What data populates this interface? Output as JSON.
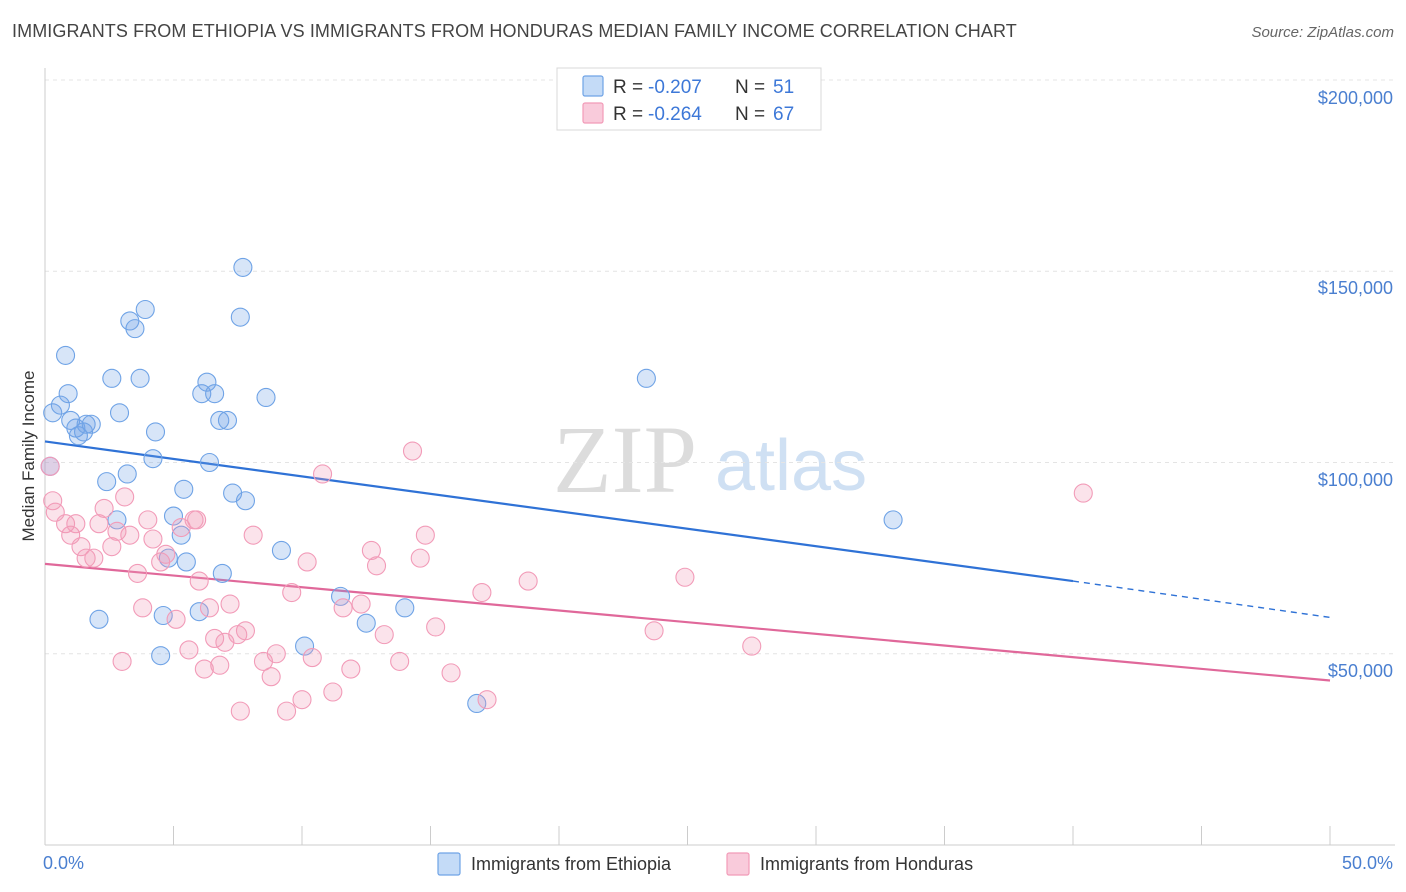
{
  "header": {
    "title": "IMMIGRANTS FROM ETHIOPIA VS IMMIGRANTS FROM HONDURAS MEDIAN FAMILY INCOME CORRELATION CHART",
    "source": "Source: ZipAtlas.com"
  },
  "watermark": {
    "zip": "ZIP",
    "atlas": "atlas"
  },
  "legend": {
    "rows": [
      {
        "r_label": "R =",
        "r_value": "-0.207",
        "n_label": "N =",
        "n_value": "51",
        "color": "#6fa3e6"
      },
      {
        "r_label": "R =",
        "r_value": "-0.264",
        "n_label": "N =",
        "n_value": "67",
        "color": "#f29bb8"
      }
    ]
  },
  "chart_data": {
    "type": "scatter",
    "title": "IMMIGRANTS FROM ETHIOPIA VS IMMIGRANTS FROM HONDURAS MEDIAN FAMILY INCOME CORRELATION CHART",
    "xlabel": "",
    "ylabel": "Median Family Income",
    "xlim": [
      0,
      50
    ],
    "ylim": [
      0,
      200000
    ],
    "x_tick_labels": [
      "0.0%",
      "50.0%"
    ],
    "y_ticks": [
      50000,
      100000,
      150000,
      200000
    ],
    "y_tick_labels": [
      "$50,000",
      "$100,000",
      "$150,000",
      "$200,000"
    ],
    "grid": true,
    "legend_position": "top-center",
    "series": [
      {
        "name": "Immigrants from Ethiopia",
        "color": "#6fa3e6",
        "trend": {
          "x": [
            0,
            40
          ],
          "y": [
            105500,
            69000
          ]
        },
        "trend_dashed": {
          "x": [
            40,
            50
          ],
          "y": [
            69000,
            59500
          ]
        },
        "points": [
          [
            0.3,
            113000
          ],
          [
            0.6,
            115000
          ],
          [
            0.8,
            128000
          ],
          [
            0.9,
            118000
          ],
          [
            1.0,
            111000
          ],
          [
            1.2,
            109000
          ],
          [
            1.3,
            107000
          ],
          [
            1.5,
            108000
          ],
          [
            1.6,
            110000
          ],
          [
            1.8,
            110000
          ],
          [
            2.4,
            95000
          ],
          [
            2.6,
            122000
          ],
          [
            2.8,
            85000
          ],
          [
            2.9,
            113000
          ],
          [
            3.2,
            97000
          ],
          [
            3.3,
            137000
          ],
          [
            3.5,
            135000
          ],
          [
            3.7,
            122000
          ],
          [
            3.9,
            140000
          ],
          [
            4.2,
            101000
          ],
          [
            4.3,
            108000
          ],
          [
            4.6,
            60000
          ],
          [
            4.5,
            49500
          ],
          [
            4.8,
            75000
          ],
          [
            5.0,
            86000
          ],
          [
            5.3,
            81000
          ],
          [
            5.4,
            93000
          ],
          [
            5.5,
            74000
          ],
          [
            6.0,
            61000
          ],
          [
            6.1,
            118000
          ],
          [
            6.3,
            121000
          ],
          [
            6.4,
            100000
          ],
          [
            6.6,
            118000
          ],
          [
            6.8,
            111000
          ],
          [
            6.9,
            71000
          ],
          [
            7.1,
            111000
          ],
          [
            7.3,
            92000
          ],
          [
            7.6,
            138000
          ],
          [
            7.8,
            90000
          ],
          [
            7.7,
            151000
          ],
          [
            8.6,
            117000
          ],
          [
            9.2,
            77000
          ],
          [
            10.1,
            52000
          ],
          [
            11.5,
            65000
          ],
          [
            12.5,
            58000
          ],
          [
            14.0,
            62000
          ],
          [
            16.8,
            37000
          ],
          [
            23.4,
            122000
          ],
          [
            33.0,
            85000
          ],
          [
            0.2,
            99000
          ],
          [
            2.1,
            59000
          ]
        ]
      },
      {
        "name": "Immigrants from Honduras",
        "color": "#f29bb8",
        "trend": {
          "x": [
            0,
            50
          ],
          "y": [
            73500,
            43000
          ]
        },
        "points": [
          [
            0.2,
            99000
          ],
          [
            0.3,
            90000
          ],
          [
            0.4,
            87000
          ],
          [
            0.8,
            84000
          ],
          [
            1.0,
            81000
          ],
          [
            1.2,
            84000
          ],
          [
            1.4,
            78000
          ],
          [
            1.6,
            75000
          ],
          [
            1.9,
            75000
          ],
          [
            2.1,
            84000
          ],
          [
            2.3,
            88000
          ],
          [
            2.6,
            78000
          ],
          [
            2.8,
            82000
          ],
          [
            3.1,
            91000
          ],
          [
            3.3,
            81000
          ],
          [
            3.6,
            71000
          ],
          [
            3.8,
            62000
          ],
          [
            4.0,
            85000
          ],
          [
            4.2,
            80000
          ],
          [
            4.5,
            74000
          ],
          [
            4.7,
            76000
          ],
          [
            5.1,
            59000
          ],
          [
            5.3,
            83000
          ],
          [
            5.6,
            51000
          ],
          [
            5.8,
            85000
          ],
          [
            6.0,
            69000
          ],
          [
            6.2,
            46000
          ],
          [
            6.4,
            62000
          ],
          [
            6.6,
            54000
          ],
          [
            6.8,
            47000
          ],
          [
            7.0,
            53000
          ],
          [
            7.2,
            63000
          ],
          [
            7.5,
            55000
          ],
          [
            7.8,
            56000
          ],
          [
            8.1,
            81000
          ],
          [
            8.5,
            48000
          ],
          [
            8.8,
            44000
          ],
          [
            9.0,
            50000
          ],
          [
            9.4,
            35000
          ],
          [
            9.6,
            66000
          ],
          [
            10.0,
            38000
          ],
          [
            10.2,
            74000
          ],
          [
            10.8,
            97000
          ],
          [
            11.2,
            40000
          ],
          [
            11.6,
            62000
          ],
          [
            11.9,
            46000
          ],
          [
            12.3,
            63000
          ],
          [
            12.7,
            77000
          ],
          [
            12.9,
            73000
          ],
          [
            13.2,
            55000
          ],
          [
            13.8,
            48000
          ],
          [
            14.3,
            103000
          ],
          [
            14.6,
            75000
          ],
          [
            14.8,
            81000
          ],
          [
            15.2,
            57000
          ],
          [
            15.8,
            45000
          ],
          [
            17.0,
            66000
          ],
          [
            18.8,
            69000
          ],
          [
            17.2,
            38000
          ],
          [
            23.7,
            56000
          ],
          [
            24.9,
            70000
          ],
          [
            27.5,
            52000
          ],
          [
            40.4,
            92000
          ],
          [
            5.9,
            85000
          ],
          [
            3.0,
            48000
          ],
          [
            7.6,
            35000
          ],
          [
            10.4,
            49000
          ]
        ]
      }
    ]
  },
  "bottom_legend": [
    {
      "label": "Immigrants from Ethiopia",
      "color": "#6fa3e6"
    },
    {
      "label": "Immigrants from Honduras",
      "color": "#f29bb8"
    }
  ]
}
